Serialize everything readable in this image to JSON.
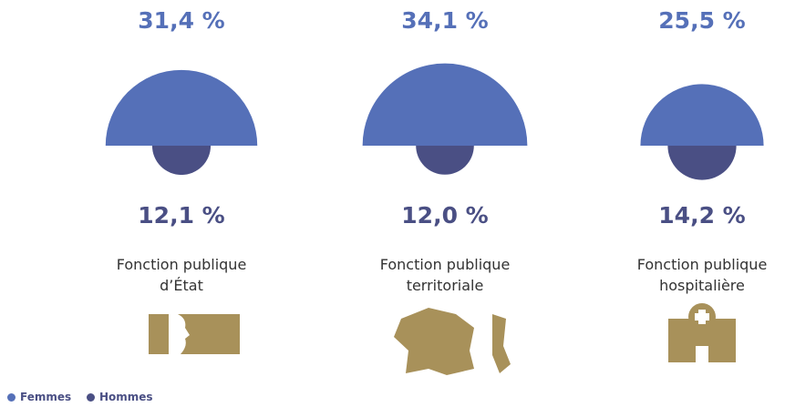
{
  "chart_data": {
    "type": "semicircle",
    "categories": [
      "Fonction publique d’État",
      "Fonction publique territoriale",
      "Fonction publique hospitalière"
    ],
    "series": [
      {
        "name": "Femmes",
        "color": "#5570b8",
        "values": [
          31.4,
          34.1,
          25.5
        ],
        "value_labels": [
          "31,4 %",
          "34,1 %",
          "25,5 %"
        ]
      },
      {
        "name": "Hommes",
        "color": "#4a4f84",
        "values": [
          12.1,
          12.0,
          14.2
        ],
        "value_labels": [
          "12,1 %",
          "12,0 %",
          "14,2 %"
        ]
      }
    ]
  }
}
